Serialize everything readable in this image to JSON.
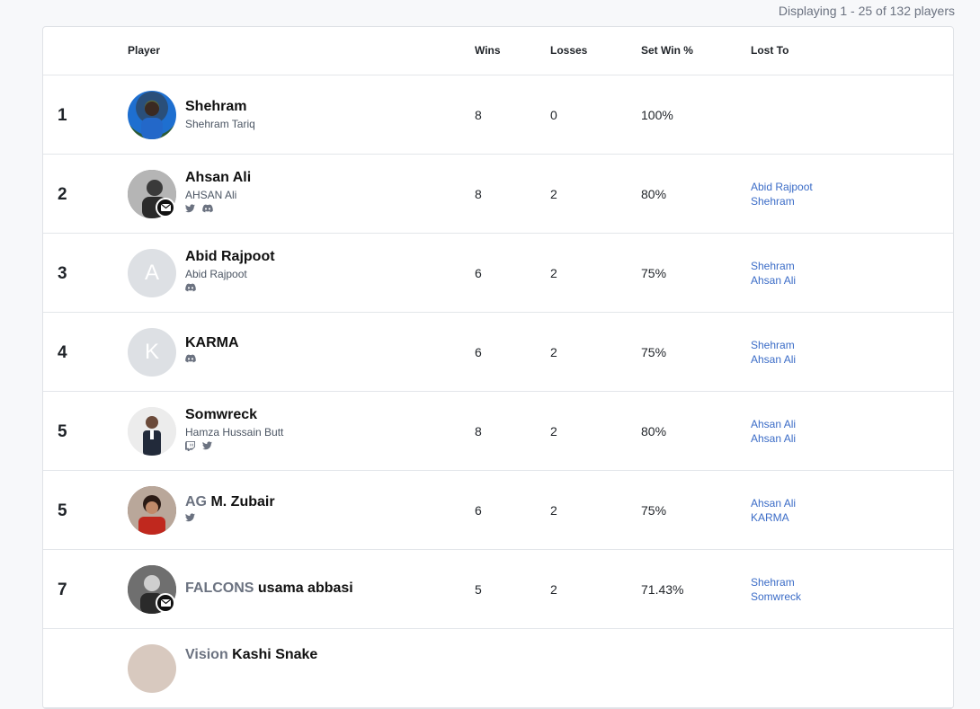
{
  "header": {
    "count_text": "Displaying 1 - 25 of 132 players"
  },
  "columns": {
    "player": "Player",
    "wins": "Wins",
    "losses": "Losses",
    "set_win": "Set Win %",
    "lost_to": "Lost To"
  },
  "colors": {
    "link": "#3b6cc7",
    "border": "#e3e6ea",
    "letter_avatar": "#dde0e4"
  },
  "rows": [
    {
      "rank": "1",
      "prefix": "",
      "name": "Shehram",
      "real_name": "Shehram Tariq",
      "avatar_letter": "",
      "wins": "8",
      "losses": "0",
      "win_pct": "100%",
      "lost_to": [],
      "socials": []
    },
    {
      "rank": "2",
      "prefix": "",
      "name": "Ahsan Ali",
      "real_name": "AHSAN Ali",
      "avatar_letter": "",
      "wins": "8",
      "losses": "2",
      "win_pct": "80%",
      "lost_to": [
        "Abid Rajpoot",
        "Shehram"
      ],
      "socials": [
        "twitter-icon",
        "discord-icon"
      ]
    },
    {
      "rank": "3",
      "prefix": "",
      "name": "Abid Rajpoot",
      "real_name": "Abid Rajpoot",
      "avatar_letter": "A",
      "wins": "6",
      "losses": "2",
      "win_pct": "75%",
      "lost_to": [
        "Shehram",
        "Ahsan Ali"
      ],
      "socials": [
        "discord-icon"
      ]
    },
    {
      "rank": "4",
      "prefix": "",
      "name": "KARMA",
      "real_name": "",
      "avatar_letter": "K",
      "wins": "6",
      "losses": "2",
      "win_pct": "75%",
      "lost_to": [
        "Shehram",
        "Ahsan Ali"
      ],
      "socials": [
        "discord-icon"
      ]
    },
    {
      "rank": "5",
      "prefix": "",
      "name": "Somwreck",
      "real_name": "Hamza Hussain Butt",
      "avatar_letter": "",
      "wins": "8",
      "losses": "2",
      "win_pct": "80%",
      "lost_to": [
        "Ahsan Ali",
        "Ahsan Ali"
      ],
      "socials": [
        "twitch-icon",
        "twitter-icon"
      ]
    },
    {
      "rank": "5",
      "prefix": "AG",
      "name": "M. Zubair",
      "real_name": "",
      "avatar_letter": "",
      "wins": "6",
      "losses": "2",
      "win_pct": "75%",
      "lost_to": [
        "Ahsan Ali",
        "KARMA"
      ],
      "socials": [
        "twitter-icon"
      ]
    },
    {
      "rank": "7",
      "prefix": "FALCONS",
      "name": "usama abbasi",
      "real_name": "",
      "avatar_letter": "",
      "wins": "5",
      "losses": "2",
      "win_pct": "71.43%",
      "lost_to": [
        "Shehram",
        "Somwreck"
      ],
      "socials": []
    },
    {
      "rank": "",
      "prefix": "Vision",
      "name": "Kashi Snake",
      "real_name": "",
      "avatar_letter": "",
      "wins": "",
      "losses": "",
      "win_pct": "",
      "lost_to": [],
      "socials": []
    }
  ]
}
